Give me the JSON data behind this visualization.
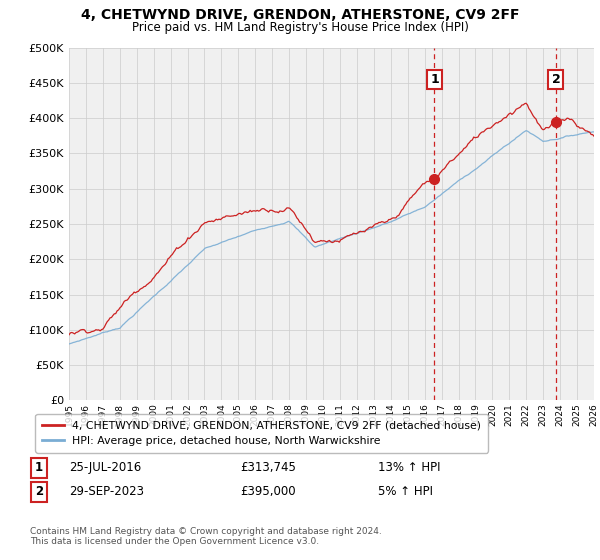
{
  "title": "4, CHETWYND DRIVE, GRENDON, ATHERSTONE, CV9 2FF",
  "subtitle": "Price paid vs. HM Land Registry's House Price Index (HPI)",
  "ylim": [
    0,
    500000
  ],
  "yticks": [
    0,
    50000,
    100000,
    150000,
    200000,
    250000,
    300000,
    350000,
    400000,
    450000,
    500000
  ],
  "xlim": [
    1995,
    2026
  ],
  "legend_label_red": "4, CHETWYND DRIVE, GRENDON, ATHERSTONE, CV9 2FF (detached house)",
  "legend_label_blue": "HPI: Average price, detached house, North Warwickshire",
  "sale1_label": "1",
  "sale1_date": "25-JUL-2016",
  "sale1_price": "£313,745",
  "sale1_hpi": "13% ↑ HPI",
  "sale1_year": 2016.58,
  "sale1_price_val": 313745,
  "sale2_label": "2",
  "sale2_date": "29-SEP-2023",
  "sale2_price": "£395,000",
  "sale2_hpi": "5% ↑ HPI",
  "sale2_year": 2023.75,
  "sale2_price_val": 395000,
  "footer": "Contains HM Land Registry data © Crown copyright and database right 2024.\nThis data is licensed under the Open Government Licence v3.0.",
  "red_color": "#cc2222",
  "blue_color": "#7aadd4",
  "grid_color": "#cccccc",
  "chart_bg": "#f0f0f0",
  "fig_bg": "#ffffff",
  "vline_color": "#cc2222",
  "title_fontsize": 10,
  "subtitle_fontsize": 8.5
}
